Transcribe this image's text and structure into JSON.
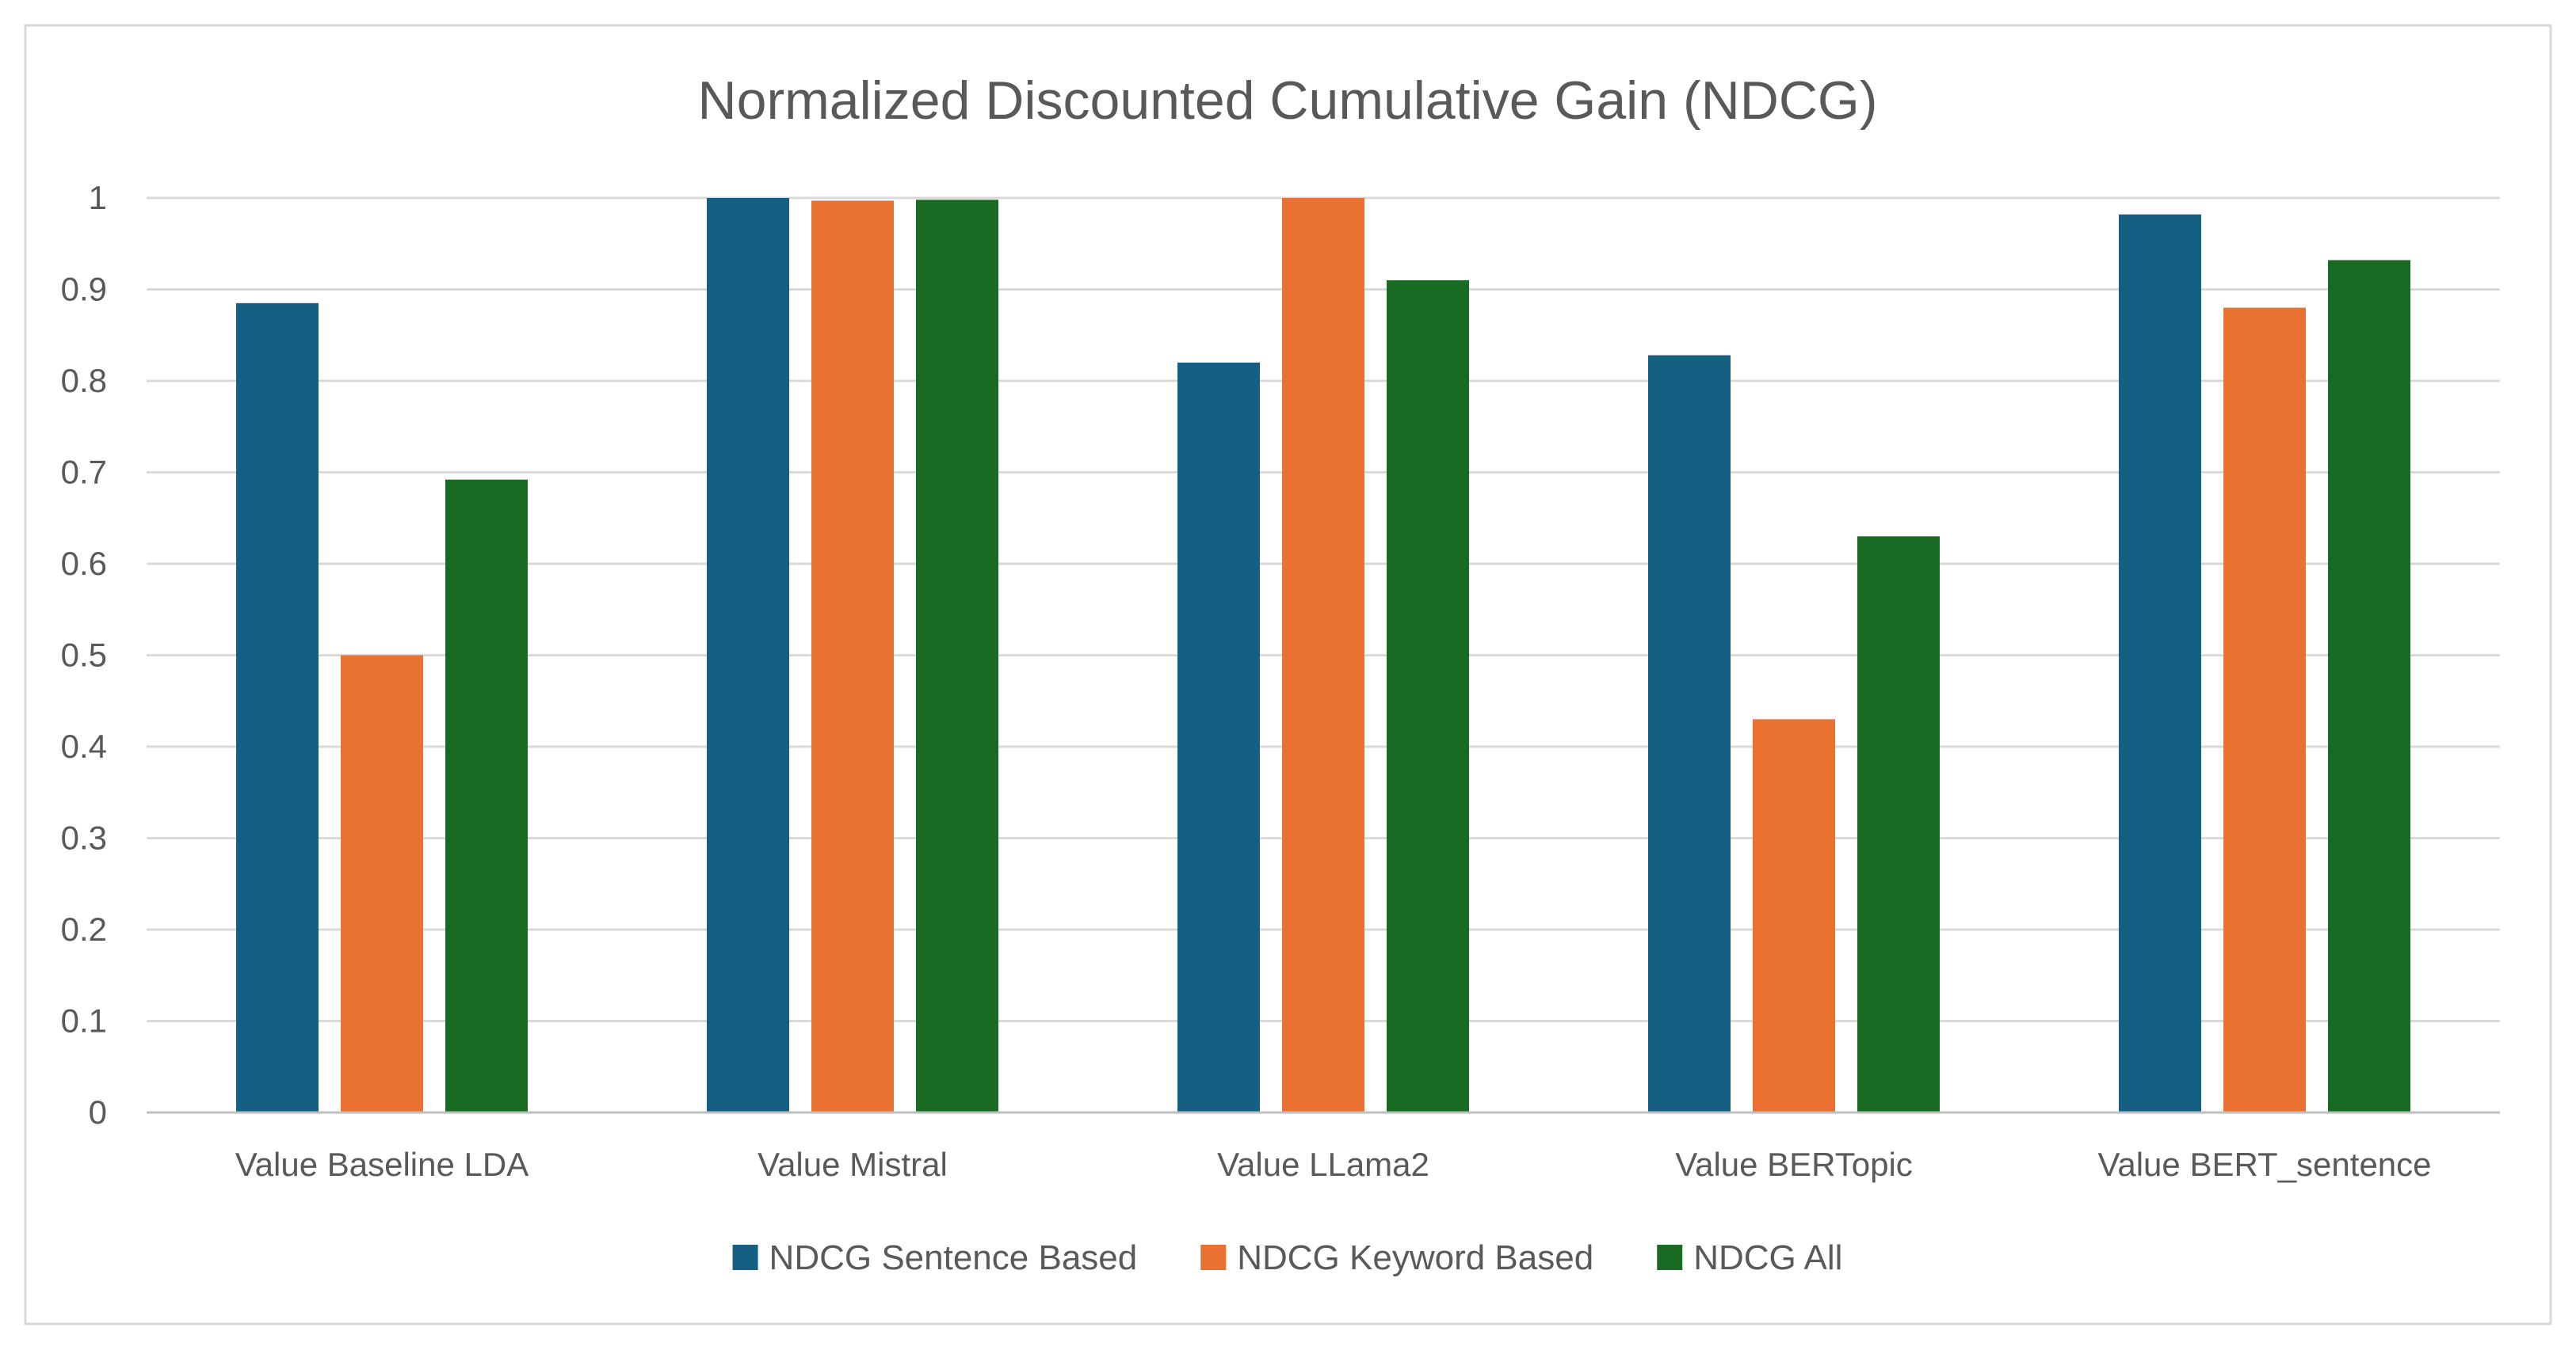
{
  "chart_data": {
    "type": "bar",
    "title": "Normalized Discounted Cumulative Gain (NDCG)",
    "xlabel": "",
    "ylabel": "",
    "ylim": [
      0,
      1
    ],
    "yticks": [
      "0",
      "0.1",
      "0.2",
      "0.3",
      "0.4",
      "0.5",
      "0.6",
      "0.7",
      "0.8",
      "0.9",
      "1"
    ],
    "grid": true,
    "legend_position": "bottom",
    "categories": [
      "Value Baseline LDA",
      "Value Mistral",
      "Value LLama2",
      "Value BERTopic",
      "Value BERT_sentence"
    ],
    "series": [
      {
        "name": "NDCG Sentence Based",
        "color": "#156082",
        "values": [
          0.885,
          1.0,
          0.82,
          0.828,
          0.982
        ]
      },
      {
        "name": "NDCG Keyword Based",
        "color": "#E97132",
        "values": [
          0.5,
          0.997,
          1.0,
          0.43,
          0.88
        ]
      },
      {
        "name": "NDCG All",
        "color": "#196B24",
        "values": [
          0.692,
          0.998,
          0.91,
          0.63,
          0.932
        ]
      }
    ],
    "colors": {
      "background": "#FFFFFF",
      "border": "#D9D9D9",
      "gridline": "#D9D9D9",
      "axis": "#BFBFBF",
      "text": "#595959"
    }
  }
}
